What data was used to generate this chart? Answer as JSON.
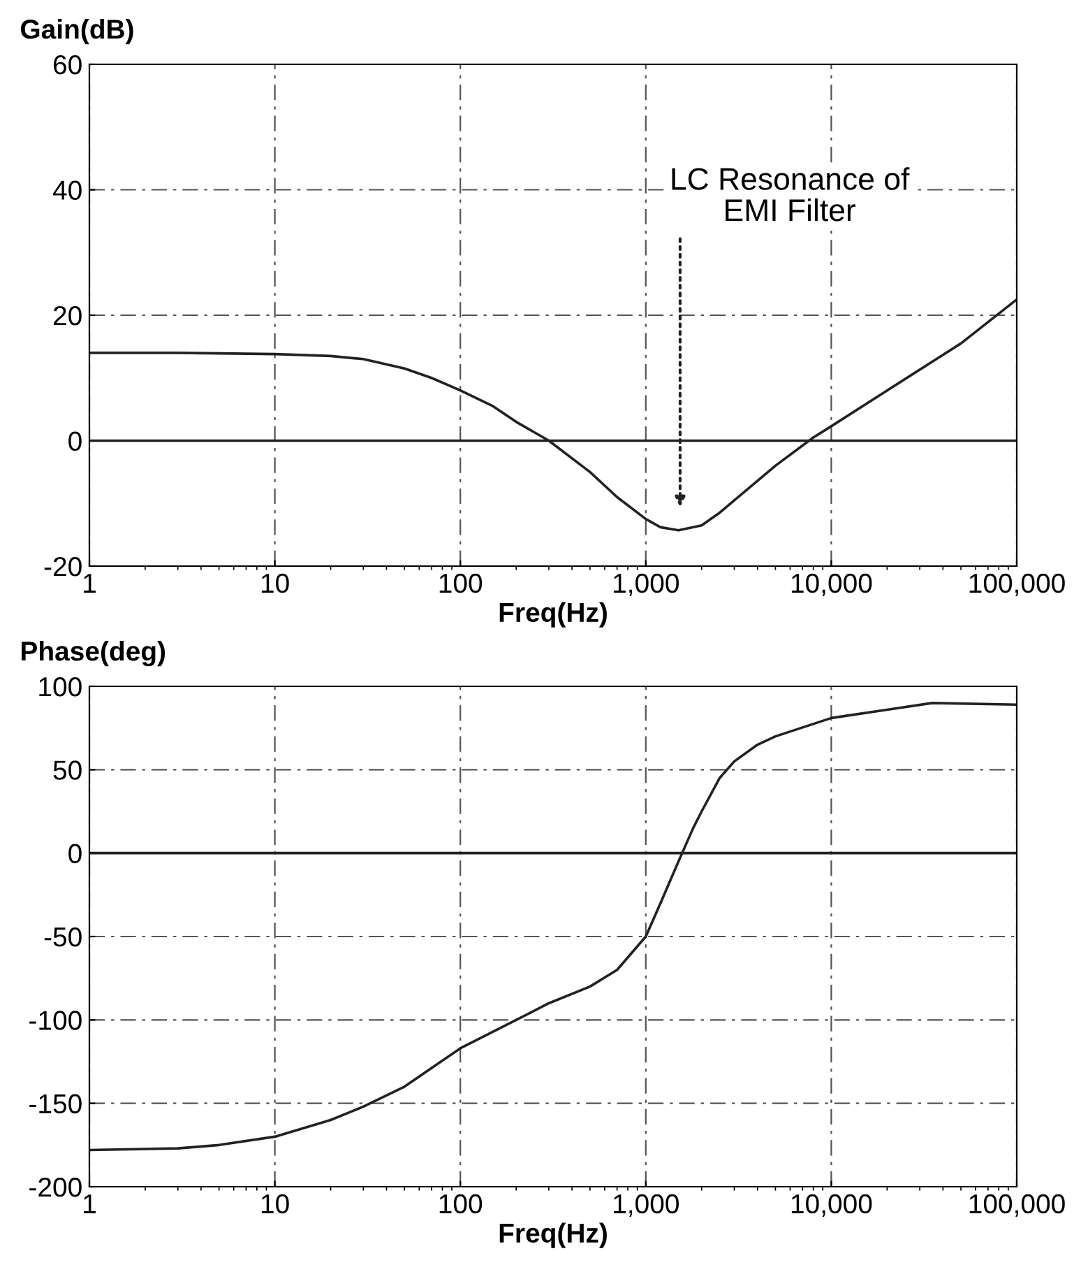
{
  "chart_data": [
    {
      "type": "line",
      "ylabel": "Gain(dB)",
      "xlabel": "Freq(Hz)",
      "log": "x",
      "grid": true,
      "x": [
        1,
        3,
        10,
        20,
        30,
        50,
        70,
        100,
        150,
        200,
        300,
        500,
        700,
        1000,
        1200,
        1500,
        2000,
        2500,
        3000,
        5000,
        8000,
        10000,
        20000,
        50000,
        100000
      ],
      "series": [
        {
          "color": "#222222",
          "values": [
            14,
            14,
            13.8,
            13.5,
            13,
            11.5,
            10,
            8,
            5.5,
            3,
            0,
            -5,
            -9,
            -12.5,
            -13.8,
            -14.3,
            -13.5,
            -11.5,
            -9.5,
            -4,
            0.5,
            2.3,
            8,
            15.5,
            22.5
          ]
        }
      ],
      "ref_lines": [
        {
          "axis": "y",
          "value": 0,
          "color": "#222222"
        }
      ],
      "annotations": [
        "LC Resonance of\nEMI Filter"
      ],
      "xlim": [
        1,
        100000
      ],
      "ylim": [
        -20,
        60
      ],
      "xticks": [
        {
          "value": 1,
          "label": "1"
        },
        {
          "value": 10,
          "label": "10"
        },
        {
          "value": 100,
          "label": "100"
        },
        {
          "value": 1000,
          "label": "1,000"
        },
        {
          "value": 10000,
          "label": "10,000"
        },
        {
          "value": 100000,
          "label": "100,000"
        }
      ],
      "yticks": [
        -20,
        0,
        20,
        40,
        60
      ]
    },
    {
      "type": "line",
      "ylabel": "Phase(deg)",
      "xlabel": "Freq(Hz)",
      "log": "x",
      "grid": true,
      "x": [
        1,
        3,
        5,
        10,
        20,
        30,
        50,
        100,
        200,
        300,
        500,
        700,
        1000,
        1200,
        1500,
        1800,
        2000,
        2500,
        3000,
        4000,
        5000,
        10000,
        20000,
        35000,
        100000
      ],
      "series": [
        {
          "color": "#222222",
          "values": [
            -178,
            -177,
            -175,
            -170,
            -160,
            -152,
            -140,
            -117,
            -100,
            -90,
            -80,
            -70,
            -50,
            -30,
            -5,
            15,
            25,
            45,
            55,
            65,
            70,
            81,
            86,
            90,
            89
          ]
        }
      ],
      "ref_lines": [
        {
          "axis": "y",
          "value": 0,
          "color": "#222222"
        }
      ],
      "xlim": [
        1,
        100000
      ],
      "ylim": [
        -200,
        100
      ],
      "xticks": [
        {
          "value": 1,
          "label": "1"
        },
        {
          "value": 10,
          "label": "10"
        },
        {
          "value": 100,
          "label": "100"
        },
        {
          "value": 1000,
          "label": "1,000"
        },
        {
          "value": 10000,
          "label": "10,000"
        },
        {
          "value": 100000,
          "label": "100,000"
        }
      ],
      "yticks": [
        -200,
        -150,
        -100,
        -50,
        0,
        50,
        100
      ]
    }
  ]
}
